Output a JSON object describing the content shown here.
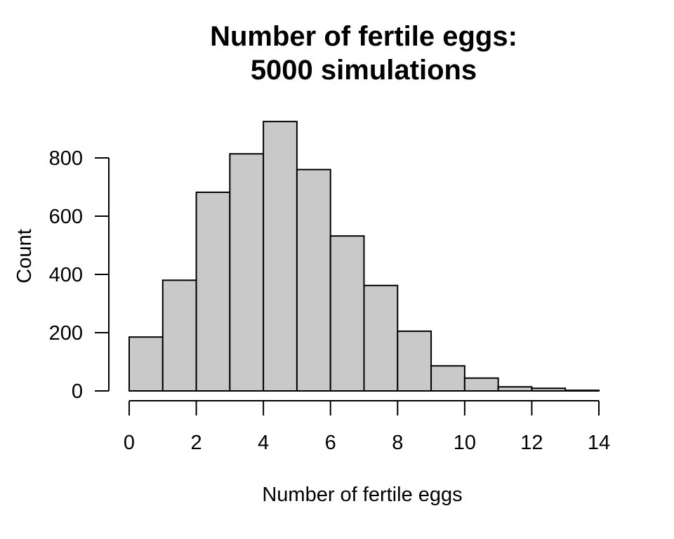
{
  "page": {
    "background": "#FFFFFF",
    "text_color": "#000000"
  },
  "chart_data": {
    "type": "bar",
    "subtype": "histogram",
    "title": "Number of fertile eggs: 5000 simulations",
    "title_lines": [
      "Number of fertile eggs:",
      "5000 simulations"
    ],
    "xlabel": "Number of fertile eggs",
    "ylabel": "Count",
    "total_simulations": 5000,
    "bin_width": 1,
    "bin_edges": [
      0,
      1,
      2,
      3,
      4,
      5,
      6,
      7,
      8,
      9,
      10,
      11,
      12,
      13,
      14
    ],
    "values": [
      185,
      380,
      682,
      814,
      925,
      760,
      532,
      362,
      205,
      86,
      44,
      14,
      9,
      2
    ],
    "x_ticks": [
      0,
      2,
      4,
      6,
      8,
      10,
      12,
      14
    ],
    "y_ticks": [
      0,
      200,
      400,
      600,
      800
    ],
    "xlim": [
      0,
      14
    ],
    "ylim": [
      0,
      800
    ],
    "grid": false,
    "legend": false,
    "bar_fill": "#C9C9C9",
    "bar_stroke": "#000000",
    "axis_color": "#000000"
  }
}
